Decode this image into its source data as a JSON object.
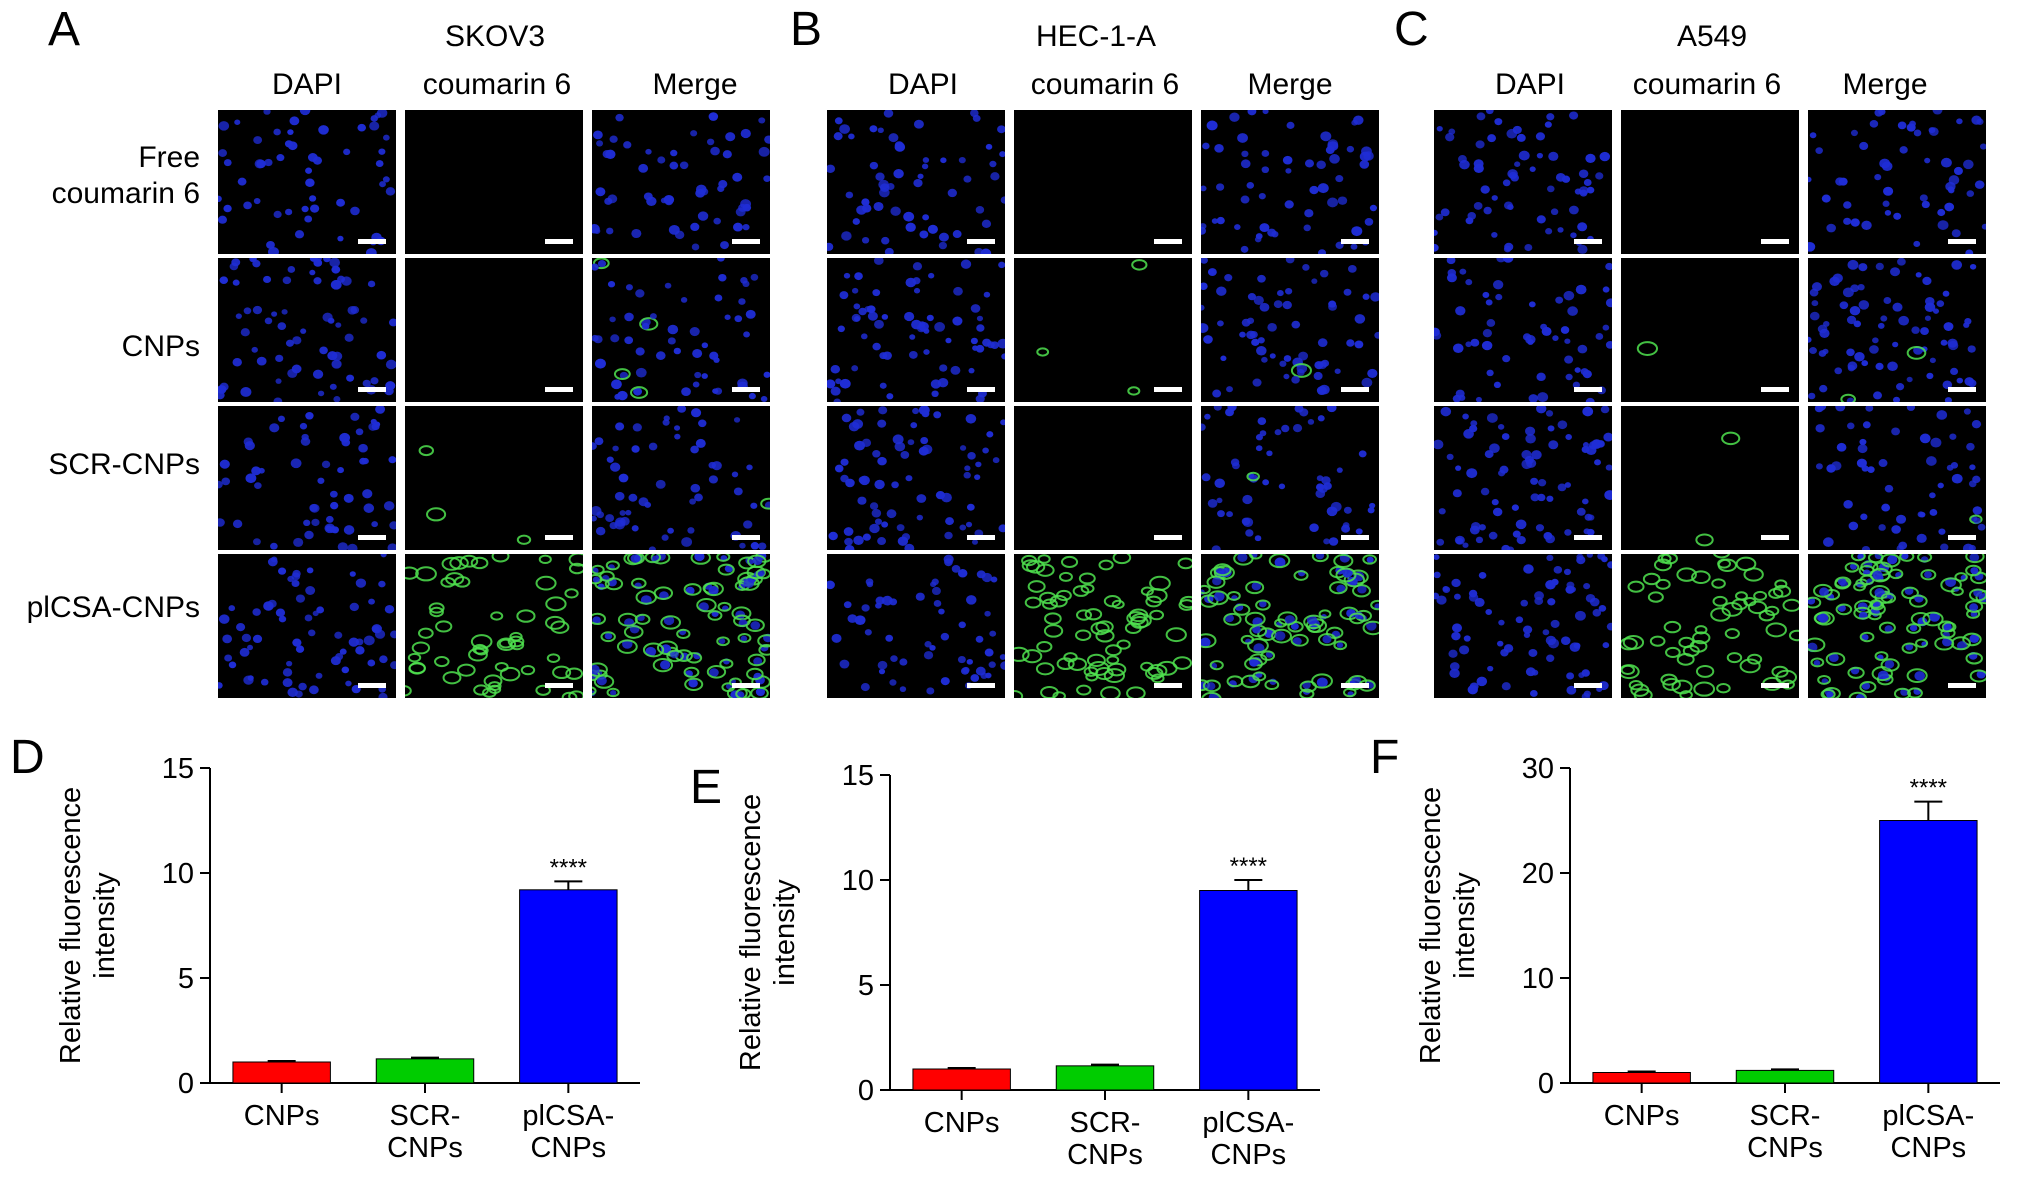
{
  "micro_panels": [
    {
      "letter": "A",
      "title": "SKOV3"
    },
    {
      "letter": "B",
      "title": "HEC-1-A"
    },
    {
      "letter": "C",
      "title": "A549"
    }
  ],
  "columns": [
    "DAPI",
    "coumarin 6",
    "Merge"
  ],
  "rows": [
    {
      "label": "Free\ncoumarin 6",
      "green": 0
    },
    {
      "label": "CNPs",
      "green": 0.03
    },
    {
      "label": "SCR-CNPs",
      "green": 0.03
    },
    {
      "label": "plCSA-CNPs",
      "green": 1
    }
  ],
  "colors": {
    "nuclei": "#1f2dd6",
    "coumarin": "#4fe24f",
    "bar_cnps": "#ff0000",
    "bar_scr": "#00cc00",
    "bar_plcsa": "#0000ff"
  },
  "chart_data": [
    {
      "panel": "D",
      "type": "bar",
      "categories": [
        "CNPs",
        "SCR-\nCNPs",
        "plCSA-\nCNPs"
      ],
      "values": [
        1.0,
        1.15,
        9.2
      ],
      "errors": [
        0.05,
        0.06,
        0.4
      ],
      "ylabel": "Relative fluorescence\nintensity",
      "ylim": [
        0,
        15
      ],
      "yticks": [
        0,
        5,
        10,
        15
      ],
      "annotation": {
        "category": 2,
        "text": "****"
      }
    },
    {
      "panel": "E",
      "type": "bar",
      "categories": [
        "CNPs",
        "SCR-\nCNPs",
        "plCSA-\nCNPs"
      ],
      "values": [
        1.0,
        1.15,
        9.5
      ],
      "errors": [
        0.05,
        0.06,
        0.5
      ],
      "ylabel": "Relative fluorescence\nintensity",
      "ylim": [
        0,
        15
      ],
      "yticks": [
        0,
        5,
        10,
        15
      ],
      "annotation": {
        "category": 2,
        "text": "****"
      }
    },
    {
      "panel": "F",
      "type": "bar",
      "categories": [
        "CNPs",
        "SCR-\nCNPs",
        "plCSA-\nCNPs"
      ],
      "values": [
        1.0,
        1.2,
        25.0
      ],
      "errors": [
        0.1,
        0.1,
        1.8
      ],
      "ylabel": "Relative fluorescence\nintensity",
      "ylim": [
        0,
        30
      ],
      "yticks": [
        0,
        10,
        20,
        30
      ],
      "annotation": {
        "category": 2,
        "text": "****"
      }
    }
  ]
}
